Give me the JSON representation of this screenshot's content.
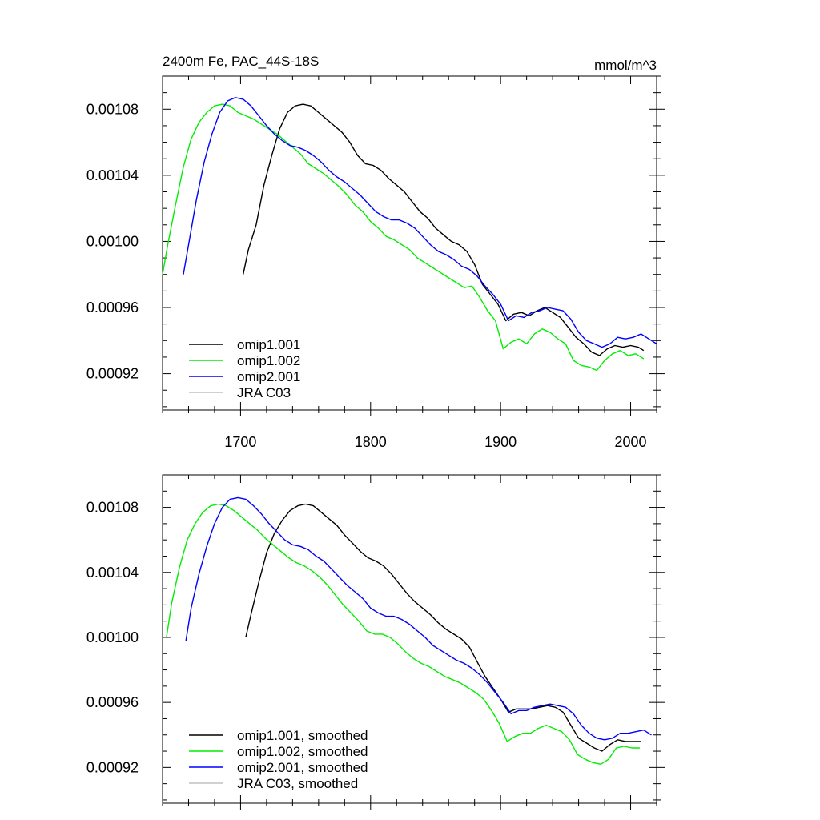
{
  "chart_data": [
    {
      "type": "line",
      "title": "2400m Fe, PAC_44S-18S",
      "units": "mmol/m^3",
      "xlim": [
        1640,
        2020
      ],
      "ylim": [
        0.0009,
        0.0011
      ],
      "xticks": [
        1700,
        1800,
        1900,
        2000
      ],
      "xtick_labels": [
        "1700",
        "1800",
        "1900",
        "2000"
      ],
      "yticks": [
        0.00092,
        0.00096,
        0.001,
        0.00104,
        0.00108
      ],
      "ytick_labels": [
        "0.00092",
        "0.00096",
        "0.00100",
        "0.00104",
        "0.00108"
      ],
      "grid": false,
      "legend_position": "bottom-left",
      "series": [
        {
          "name": "omip1.001",
          "color": "#000000",
          "x": [
            1702,
            1706,
            1712,
            1718,
            1724,
            1730,
            1736,
            1742,
            1748,
            1754,
            1760,
            1766,
            1772,
            1778,
            1784,
            1790,
            1796,
            1802,
            1808,
            1814,
            1820,
            1826,
            1832,
            1838,
            1844,
            1850,
            1856,
            1862,
            1868,
            1874,
            1880,
            1886,
            1892,
            1898,
            1904,
            1910,
            1916,
            1922,
            1928,
            1934,
            1940,
            1946,
            1952,
            1958,
            1964,
            1970,
            1976,
            1982,
            1988,
            1994,
            2000,
            2006,
            2010
          ],
          "y": [
            0.00098,
            0.000995,
            0.00101,
            0.001034,
            0.001052,
            0.001068,
            0.001078,
            0.001082,
            0.001083,
            0.001082,
            0.001078,
            0.001074,
            0.00107,
            0.001066,
            0.00106,
            0.001052,
            0.001047,
            0.001046,
            0.001043,
            0.001038,
            0.001034,
            0.00103,
            0.001024,
            0.001018,
            0.001014,
            0.001008,
            0.001004,
            0.001,
            0.000998,
            0.000994,
            0.000986,
            0.000974,
            0.000968,
            0.000962,
            0.000952,
            0.000956,
            0.000957,
            0.000955,
            0.000958,
            0.00096,
            0.000957,
            0.000954,
            0.000948,
            0.000942,
            0.000938,
            0.000933,
            0.000931,
            0.000935,
            0.000937,
            0.000936,
            0.000937,
            0.000936,
            0.000934
          ]
        },
        {
          "name": "omip1.002",
          "color": "#00ee00",
          "x": [
            1640,
            1644,
            1650,
            1656,
            1662,
            1668,
            1674,
            1680,
            1686,
            1692,
            1698,
            1704,
            1710,
            1716,
            1722,
            1728,
            1734,
            1740,
            1746,
            1752,
            1758,
            1764,
            1770,
            1776,
            1782,
            1788,
            1794,
            1800,
            1806,
            1812,
            1818,
            1824,
            1830,
            1836,
            1842,
            1848,
            1854,
            1860,
            1866,
            1872,
            1878,
            1884,
            1890,
            1896,
            1902,
            1908,
            1914,
            1920,
            1926,
            1932,
            1938,
            1944,
            1950,
            1956,
            1962,
            1968,
            1974,
            1980,
            1986,
            1992,
            1998,
            2004,
            2010
          ],
          "y": [
            0.00098,
            0.000998,
            0.001022,
            0.001045,
            0.001062,
            0.001072,
            0.001078,
            0.001082,
            0.001083,
            0.001082,
            0.001078,
            0.001076,
            0.001074,
            0.001071,
            0.001068,
            0.001065,
            0.001061,
            0.001057,
            0.001053,
            0.001047,
            0.001044,
            0.001041,
            0.001037,
            0.001033,
            0.001028,
            0.001022,
            0.001018,
            0.001012,
            0.001008,
            0.001003,
            0.001001,
            0.000998,
            0.000995,
            0.00099,
            0.000987,
            0.000984,
            0.000981,
            0.000978,
            0.000975,
            0.000972,
            0.000973,
            0.000966,
            0.000958,
            0.000952,
            0.000935,
            0.000939,
            0.000941,
            0.000938,
            0.000944,
            0.000947,
            0.000945,
            0.000941,
            0.000938,
            0.000928,
            0.000925,
            0.000924,
            0.000922,
            0.000928,
            0.000932,
            0.000934,
            0.000931,
            0.000932,
            0.000929
          ]
        },
        {
          "name": "omip2.001",
          "color": "#0000ff",
          "x": [
            1656,
            1660,
            1666,
            1672,
            1678,
            1684,
            1690,
            1696,
            1702,
            1708,
            1714,
            1720,
            1726,
            1732,
            1738,
            1744,
            1750,
            1756,
            1762,
            1768,
            1774,
            1780,
            1786,
            1792,
            1798,
            1804,
            1810,
            1816,
            1822,
            1828,
            1834,
            1840,
            1846,
            1852,
            1858,
            1864,
            1870,
            1876,
            1882,
            1888,
            1894,
            1900,
            1906,
            1912,
            1918,
            1924,
            1930,
            1936,
            1942,
            1948,
            1954,
            1960,
            1966,
            1972,
            1978,
            1984,
            1990,
            1996,
            2002,
            2008,
            2014,
            2020
          ],
          "y": [
            0.00098,
            0.000998,
            0.001025,
            0.001048,
            0.001065,
            0.001078,
            0.001085,
            0.001087,
            0.001086,
            0.001082,
            0.001076,
            0.00107,
            0.001065,
            0.001061,
            0.001058,
            0.001057,
            0.001055,
            0.001052,
            0.001048,
            0.001043,
            0.001039,
            0.001036,
            0.001032,
            0.001028,
            0.001023,
            0.001018,
            0.001015,
            0.001013,
            0.001013,
            0.001011,
            0.001008,
            0.001003,
            0.000998,
            0.000994,
            0.000992,
            0.000989,
            0.000985,
            0.000983,
            0.000979,
            0.000973,
            0.000968,
            0.000962,
            0.000952,
            0.000955,
            0.000954,
            0.000957,
            0.000958,
            0.00096,
            0.000959,
            0.000958,
            0.000953,
            0.000945,
            0.00094,
            0.000938,
            0.000936,
            0.000938,
            0.000942,
            0.000941,
            0.000942,
            0.000944,
            0.000941,
            0.000938
          ]
        },
        {
          "name": "JRA C03",
          "color": "#c0c0c0",
          "x": [],
          "y": []
        }
      ]
    },
    {
      "type": "line",
      "title": "",
      "xlim": [
        1640,
        2020
      ],
      "ylim": [
        0.0009,
        0.0011
      ],
      "xticks": [
        1700,
        1800,
        1900,
        2000
      ],
      "yticks": [
        0.00092,
        0.00096,
        0.001,
        0.00104,
        0.00108
      ],
      "ytick_labels": [
        "0.00092",
        "0.00096",
        "0.00100",
        "0.00104",
        "0.00108"
      ],
      "grid": false,
      "legend_position": "bottom-left",
      "series": [
        {
          "name": "omip1.001, smoothed",
          "color": "#000000",
          "x": [
            1704,
            1708,
            1714,
            1720,
            1726,
            1732,
            1738,
            1744,
            1750,
            1756,
            1762,
            1768,
            1774,
            1780,
            1786,
            1792,
            1798,
            1804,
            1810,
            1816,
            1822,
            1828,
            1834,
            1840,
            1846,
            1852,
            1858,
            1864,
            1870,
            1876,
            1882,
            1888,
            1894,
            1900,
            1906,
            1912,
            1918,
            1924,
            1930,
            1936,
            1942,
            1948,
            1954,
            1960,
            1966,
            1972,
            1978,
            1984,
            1990,
            1996,
            2002,
            2008
          ],
          "y": [
            0.001,
            0.001014,
            0.001034,
            0.001052,
            0.001064,
            0.001072,
            0.001078,
            0.001081,
            0.001082,
            0.001081,
            0.001077,
            0.001073,
            0.001069,
            0.001063,
            0.001058,
            0.001053,
            0.001049,
            0.001047,
            0.001044,
            0.001039,
            0.001033,
            0.001027,
            0.001022,
            0.001018,
            0.001014,
            0.001009,
            0.001005,
            0.001002,
            0.000999,
            0.000994,
            0.000985,
            0.000976,
            0.000969,
            0.000962,
            0.000954,
            0.000956,
            0.000956,
            0.000956,
            0.000957,
            0.000958,
            0.000957,
            0.000954,
            0.000946,
            0.000938,
            0.000935,
            0.000932,
            0.00093,
            0.000934,
            0.000937,
            0.000936,
            0.000936,
            0.000936
          ]
        },
        {
          "name": "omip1.002, smoothed",
          "color": "#00ee00",
          "x": [
            1643,
            1647,
            1653,
            1659,
            1665,
            1671,
            1677,
            1683,
            1689,
            1695,
            1701,
            1707,
            1713,
            1719,
            1725,
            1731,
            1737,
            1743,
            1749,
            1755,
            1761,
            1767,
            1773,
            1779,
            1785,
            1791,
            1797,
            1803,
            1809,
            1815,
            1821,
            1827,
            1833,
            1839,
            1845,
            1851,
            1857,
            1863,
            1869,
            1875,
            1881,
            1887,
            1893,
            1899,
            1905,
            1911,
            1917,
            1923,
            1929,
            1935,
            1941,
            1947,
            1953,
            1959,
            1965,
            1971,
            1977,
            1983,
            1989,
            1995,
            2001,
            2007
          ],
          "y": [
            0.001,
            0.001021,
            0.001043,
            0.00106,
            0.00107,
            0.001077,
            0.001081,
            0.001082,
            0.001081,
            0.001078,
            0.001074,
            0.00107,
            0.001066,
            0.001061,
            0.001057,
            0.001053,
            0.001049,
            0.001046,
            0.001044,
            0.001041,
            0.001037,
            0.001032,
            0.001026,
            0.00102,
            0.001015,
            0.00101,
            0.001004,
            0.001002,
            0.001002,
            0.001,
            0.000996,
            0.000991,
            0.000987,
            0.000984,
            0.000982,
            0.000979,
            0.000976,
            0.000974,
            0.000972,
            0.000969,
            0.000966,
            0.000962,
            0.000955,
            0.000947,
            0.000936,
            0.000939,
            0.000941,
            0.000941,
            0.000944,
            0.000946,
            0.000944,
            0.000942,
            0.000937,
            0.000928,
            0.000925,
            0.000923,
            0.000922,
            0.000925,
            0.000932,
            0.000933,
            0.000932,
            0.000932
          ]
        },
        {
          "name": "omip2.001, smoothed",
          "color": "#0000ff",
          "x": [
            1658,
            1662,
            1668,
            1674,
            1680,
            1686,
            1692,
            1698,
            1704,
            1710,
            1716,
            1722,
            1728,
            1734,
            1740,
            1746,
            1752,
            1758,
            1764,
            1770,
            1776,
            1782,
            1788,
            1794,
            1800,
            1806,
            1812,
            1818,
            1824,
            1830,
            1836,
            1842,
            1848,
            1854,
            1860,
            1866,
            1872,
            1878,
            1884,
            1890,
            1896,
            1902,
            1908,
            1914,
            1920,
            1926,
            1932,
            1938,
            1944,
            1950,
            1956,
            1962,
            1968,
            1974,
            1980,
            1986,
            1992,
            1998,
            2004,
            2010,
            2016
          ],
          "y": [
            0.000998,
            0.001018,
            0.001039,
            0.001056,
            0.00107,
            0.00108,
            0.001085,
            0.001086,
            0.001085,
            0.001081,
            0.001076,
            0.00107,
            0.001065,
            0.00106,
            0.001057,
            0.001056,
            0.001054,
            0.00105,
            0.001047,
            0.001042,
            0.001037,
            0.001032,
            0.001028,
            0.001024,
            0.001018,
            0.001015,
            0.001013,
            0.001013,
            0.001011,
            0.001008,
            0.001004,
            0.001,
            0.000995,
            0.000992,
            0.000989,
            0.000986,
            0.000984,
            0.000981,
            0.000977,
            0.000972,
            0.000966,
            0.00096,
            0.000953,
            0.000955,
            0.000955,
            0.000957,
            0.000958,
            0.000959,
            0.000958,
            0.000957,
            0.000953,
            0.000946,
            0.000941,
            0.000938,
            0.000937,
            0.000938,
            0.000941,
            0.000941,
            0.000942,
            0.000943,
            0.00094
          ]
        },
        {
          "name": "JRA C03, smoothed",
          "color": "#c0c0c0",
          "x": [],
          "y": []
        }
      ]
    }
  ]
}
